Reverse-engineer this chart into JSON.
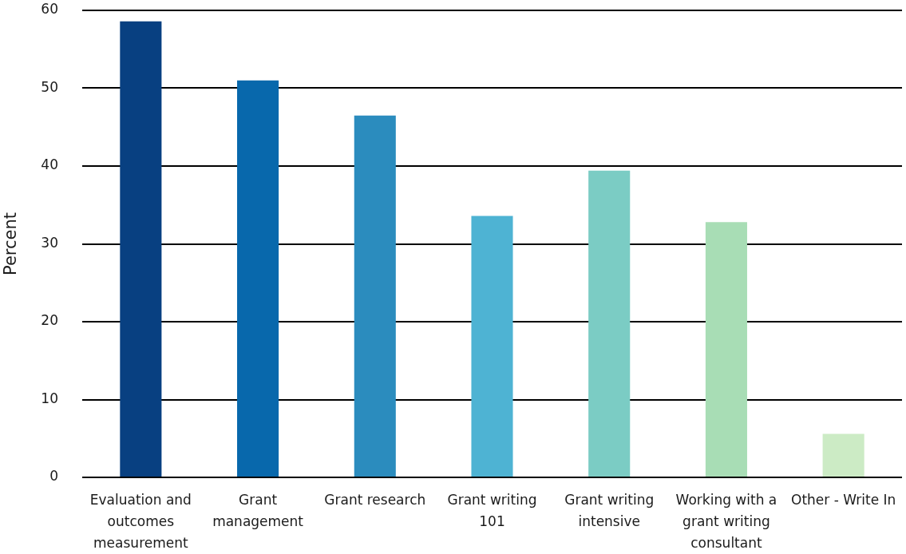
{
  "chart_data": {
    "type": "bar",
    "ylabel": "Percent",
    "categories": [
      "Evaluation and outcomes measurement",
      "Grant management",
      "Grant research",
      "Grant writing 101",
      "Grant writing intensive",
      "Working with a grant writing consultant",
      "Other - Write In"
    ],
    "values": [
      58.6,
      51.0,
      46.5,
      33.6,
      39.4,
      32.8,
      5.6
    ],
    "colors": [
      "#084081",
      "#0868ac",
      "#2b8cbe",
      "#4eb3d3",
      "#7bccc4",
      "#a8ddb5",
      "#ccebc5"
    ],
    "ylim": [
      0,
      60
    ],
    "yticks": [
      0,
      10,
      20,
      30,
      40,
      50,
      60
    ],
    "grid": "y"
  }
}
